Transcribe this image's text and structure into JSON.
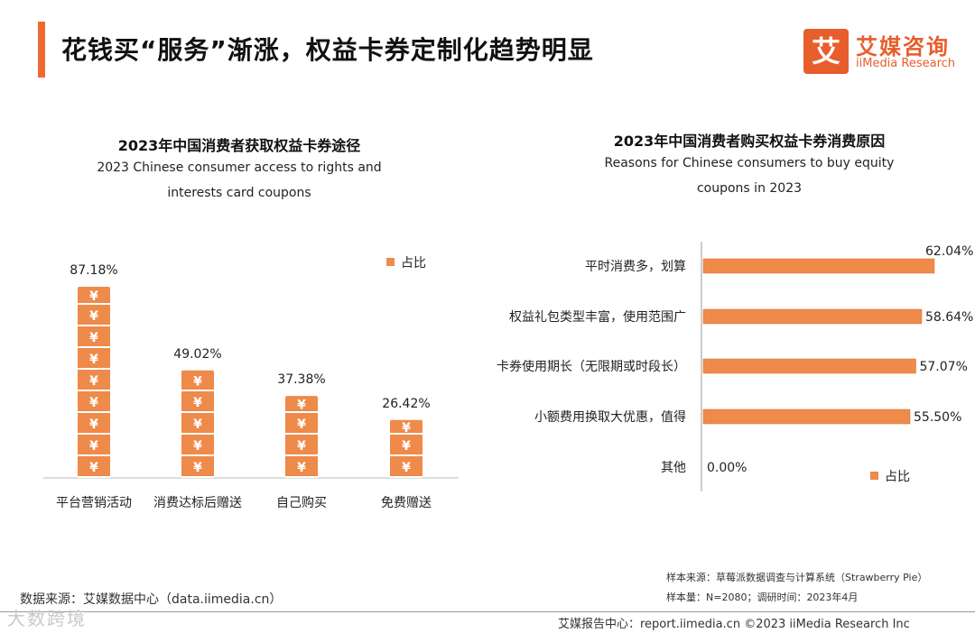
{
  "header": {
    "title": "花钱买“服务”渐涨，权益卡券定制化趋势明显",
    "logo_mark": "艾",
    "logo_cn": "艾媒咨询",
    "logo_en": "iiMedia Research"
  },
  "colors": {
    "accent": "#ee6a2f",
    "bar": "#ee8a4a",
    "bar_edge": "#e0702f"
  },
  "chart_data": [
    {
      "type": "bar",
      "title": "2023年中国消费者获取权益卡券途径",
      "subtitle_line1": "2023 Chinese consumer access to rights and",
      "subtitle_line2": "interests card coupons",
      "legend": "占比",
      "legend_position": "top-right",
      "categories": [
        "平台营销活动",
        "消费达标后赠送",
        "自己购买",
        "免费赠送"
      ],
      "values": [
        87.18,
        49.02,
        37.38,
        26.42
      ],
      "labels": [
        "87.18%",
        "49.02%",
        "37.38%",
        "26.42%"
      ],
      "unit": "%",
      "ylim": [
        0,
        100
      ]
    },
    {
      "type": "bar",
      "orientation": "horizontal",
      "title": "2023年中国消费者购买权益卡券消费原因",
      "subtitle_line1": "Reasons for Chinese consumers to buy equity",
      "subtitle_line2": "coupons in 2023",
      "legend": "占比",
      "legend_position": "bottom-right",
      "categories": [
        "平时消费多，划算",
        "权益礼包类型丰富，使用范围广",
        "卡券使用期长（无限期或时段长）",
        "小额费用换取大优惠，值得",
        "其他"
      ],
      "values": [
        62.04,
        58.64,
        57.07,
        55.5,
        0.0
      ],
      "labels": [
        "62.04%",
        "58.64%",
        "57.07%",
        "55.50%",
        "0.00%"
      ],
      "unit": "%",
      "xlim": [
        0,
        62.04
      ]
    }
  ],
  "footer": {
    "source": "数据来源：艾媒数据中心（data.iimedia.cn）",
    "sample_source": "样本来源：草莓派数据调查与计算系统（Strawberry Pie）",
    "sample_size": "样本量：N=2080；调研时间：2023年4月",
    "report_center": "艾媒报告中心：report.iimedia.cn   ©2023  iiMedia Research  Inc",
    "watermark": "大数跨境"
  }
}
